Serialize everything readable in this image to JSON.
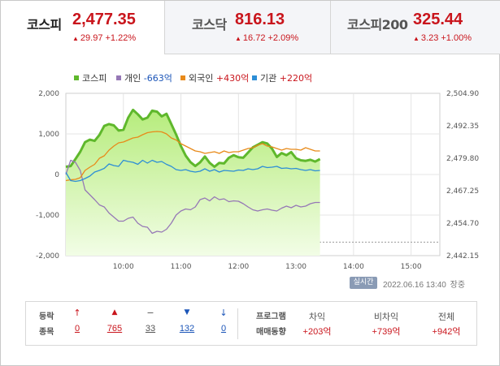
{
  "tabs": [
    {
      "name": "코스피",
      "value": "2,477.35",
      "change_arrow": "▲",
      "change": "29.97 +1.22%",
      "active": true
    },
    {
      "name": "코스닥",
      "value": "816.13",
      "change_arrow": "▲",
      "change": "16.72 +2.09%",
      "active": false
    },
    {
      "name": "코스피200",
      "value": "325.44",
      "change_arrow": "▲",
      "change": "3.23 +1.00%",
      "active": false
    }
  ],
  "colors": {
    "up": "#c9151c",
    "down": "#1b55b8",
    "kospi": "#5fb82c",
    "individual": "#9678b6",
    "foreign": "#e88a1a",
    "institution": "#2d8ed6"
  },
  "legend": [
    {
      "label": "코스피",
      "value": ""
    },
    {
      "label": "개인",
      "value": "-663억"
    },
    {
      "label": "외국인",
      "value": "+430억"
    },
    {
      "label": "기관",
      "value": "+220억"
    }
  ],
  "chart_data": {
    "type": "line",
    "x_ticks": [
      "10:00",
      "11:00",
      "12:00",
      "13:00",
      "14:00",
      "15:00"
    ],
    "y_left_ticks": [
      "2,000",
      "1,000",
      "0",
      "-1,000",
      "-2,000"
    ],
    "y_right_ticks": [
      "2,504.90",
      "2,492.35",
      "2,479.80",
      "2,467.25",
      "2,454.70",
      "2,442.15"
    ],
    "y_left_range": [
      -2000,
      2000
    ],
    "y_right_range": [
      2442.15,
      2504.9
    ],
    "x_range": [
      "09:00",
      "15:30"
    ],
    "reference_level": 2447.38,
    "series": [
      {
        "name": "코스피",
        "axis": "right",
        "style": "area",
        "points": [
          [
            "09:00",
            2476.5
          ],
          [
            "09:05",
            2476.8
          ],
          [
            "09:10",
            2479.5
          ],
          [
            "09:15",
            2482.3
          ],
          [
            "09:20",
            2486.0
          ],
          [
            "09:25",
            2487.0
          ],
          [
            "09:30",
            2486.5
          ],
          [
            "09:35",
            2488.8
          ],
          [
            "09:40",
            2492.3
          ],
          [
            "09:45",
            2493.0
          ],
          [
            "09:50",
            2492.5
          ],
          [
            "09:55",
            2490.5
          ],
          [
            "10:00",
            2490.8
          ],
          [
            "10:05",
            2495.5
          ],
          [
            "10:10",
            2498.5
          ],
          [
            "10:15",
            2496.8
          ],
          [
            "10:20",
            2494.8
          ],
          [
            "10:25",
            2495.5
          ],
          [
            "10:30",
            2498.2
          ],
          [
            "10:35",
            2497.8
          ],
          [
            "10:40",
            2496.0
          ],
          [
            "10:45",
            2497.0
          ],
          [
            "10:50",
            2493.0
          ],
          [
            "10:55",
            2489.0
          ],
          [
            "11:00",
            2484.5
          ],
          [
            "11:05",
            2480.8
          ],
          [
            "11:10",
            2478.3
          ],
          [
            "11:15",
            2476.8
          ],
          [
            "11:20",
            2478.2
          ],
          [
            "11:25",
            2480.5
          ],
          [
            "11:30",
            2478.0
          ],
          [
            "11:35",
            2476.5
          ],
          [
            "11:40",
            2478.0
          ],
          [
            "11:45",
            2477.8
          ],
          [
            "11:50",
            2480.0
          ],
          [
            "11:55",
            2481.0
          ],
          [
            "12:00",
            2480.2
          ],
          [
            "12:05",
            2480.0
          ],
          [
            "12:10",
            2482.0
          ],
          [
            "12:15",
            2484.0
          ],
          [
            "12:20",
            2485.0
          ],
          [
            "12:25",
            2486.0
          ],
          [
            "12:30",
            2485.5
          ],
          [
            "12:35",
            2483.5
          ],
          [
            "12:40",
            2480.3
          ],
          [
            "12:45",
            2481.8
          ],
          [
            "12:50",
            2481.0
          ],
          [
            "12:55",
            2482.2
          ],
          [
            "13:00",
            2479.8
          ],
          [
            "13:05",
            2479.0
          ],
          [
            "13:10",
            2478.8
          ],
          [
            "13:15",
            2479.2
          ],
          [
            "13:20",
            2478.5
          ],
          [
            "13:25",
            2479.5
          ]
        ]
      },
      {
        "name": "개인",
        "axis": "left",
        "style": "line",
        "points": [
          [
            "09:00",
            0
          ],
          [
            "09:05",
            350
          ],
          [
            "09:10",
            300
          ],
          [
            "09:15",
            100
          ],
          [
            "09:20",
            -380
          ],
          [
            "09:25",
            -500
          ],
          [
            "09:30",
            -620
          ],
          [
            "09:35",
            -750
          ],
          [
            "09:40",
            -800
          ],
          [
            "09:45",
            -950
          ],
          [
            "09:50",
            -1050
          ],
          [
            "09:55",
            -1150
          ],
          [
            "10:00",
            -1150
          ],
          [
            "10:05",
            -1080
          ],
          [
            "10:10",
            -1050
          ],
          [
            "10:15",
            -1200
          ],
          [
            "10:20",
            -1280
          ],
          [
            "10:25",
            -1300
          ],
          [
            "10:30",
            -1450
          ],
          [
            "10:35",
            -1400
          ],
          [
            "10:40",
            -1420
          ],
          [
            "10:45",
            -1350
          ],
          [
            "10:50",
            -1200
          ],
          [
            "10:55",
            -1000
          ],
          [
            "11:00",
            -900
          ],
          [
            "11:05",
            -850
          ],
          [
            "11:10",
            -870
          ],
          [
            "11:15",
            -800
          ],
          [
            "11:20",
            -620
          ],
          [
            "11:25",
            -580
          ],
          [
            "11:30",
            -650
          ],
          [
            "11:35",
            -550
          ],
          [
            "11:40",
            -620
          ],
          [
            "11:45",
            -600
          ],
          [
            "11:50",
            -670
          ],
          [
            "11:55",
            -650
          ],
          [
            "12:00",
            -660
          ],
          [
            "12:05",
            -720
          ],
          [
            "12:10",
            -800
          ],
          [
            "12:15",
            -870
          ],
          [
            "12:20",
            -900
          ],
          [
            "12:25",
            -870
          ],
          [
            "12:30",
            -850
          ],
          [
            "12:35",
            -880
          ],
          [
            "12:40",
            -900
          ],
          [
            "12:45",
            -830
          ],
          [
            "12:50",
            -780
          ],
          [
            "12:55",
            -820
          ],
          [
            "13:00",
            -760
          ],
          [
            "13:05",
            -800
          ],
          [
            "13:10",
            -780
          ],
          [
            "13:15",
            -720
          ],
          [
            "13:20",
            -690
          ],
          [
            "13:25",
            -690
          ]
        ]
      },
      {
        "name": "외국인",
        "axis": "left",
        "style": "line",
        "points": [
          [
            "09:00",
            -150
          ],
          [
            "09:05",
            -130
          ],
          [
            "09:10",
            -120
          ],
          [
            "09:15",
            -80
          ],
          [
            "09:20",
            100
          ],
          [
            "09:25",
            180
          ],
          [
            "09:30",
            250
          ],
          [
            "09:35",
            400
          ],
          [
            "09:40",
            460
          ],
          [
            "09:45",
            600
          ],
          [
            "09:50",
            700
          ],
          [
            "09:55",
            780
          ],
          [
            "10:00",
            800
          ],
          [
            "10:05",
            850
          ],
          [
            "10:10",
            900
          ],
          [
            "10:15",
            920
          ],
          [
            "10:20",
            980
          ],
          [
            "10:25",
            1030
          ],
          [
            "10:30",
            1050
          ],
          [
            "10:35",
            1060
          ],
          [
            "10:40",
            1050
          ],
          [
            "10:45",
            1000
          ],
          [
            "10:50",
            900
          ],
          [
            "10:55",
            850
          ],
          [
            "11:00",
            760
          ],
          [
            "11:05",
            700
          ],
          [
            "11:10",
            640
          ],
          [
            "11:15",
            580
          ],
          [
            "11:20",
            560
          ],
          [
            "11:25",
            520
          ],
          [
            "11:30",
            540
          ],
          [
            "11:35",
            560
          ],
          [
            "11:40",
            520
          ],
          [
            "11:45",
            580
          ],
          [
            "11:50",
            540
          ],
          [
            "11:55",
            560
          ],
          [
            "12:00",
            560
          ],
          [
            "12:05",
            600
          ],
          [
            "12:10",
            640
          ],
          [
            "12:15",
            660
          ],
          [
            "12:20",
            720
          ],
          [
            "12:25",
            760
          ],
          [
            "12:30",
            700
          ],
          [
            "12:35",
            680
          ],
          [
            "12:40",
            640
          ],
          [
            "12:45",
            600
          ],
          [
            "12:50",
            640
          ],
          [
            "12:55",
            620
          ],
          [
            "13:00",
            620
          ],
          [
            "13:05",
            600
          ],
          [
            "13:10",
            660
          ],
          [
            "13:15",
            620
          ],
          [
            "13:20",
            580
          ],
          [
            "13:25",
            580
          ]
        ]
      },
      {
        "name": "기관",
        "axis": "left",
        "style": "line",
        "points": [
          [
            "09:00",
            50
          ],
          [
            "09:05",
            -150
          ],
          [
            "09:10",
            -170
          ],
          [
            "09:15",
            -150
          ],
          [
            "09:20",
            -100
          ],
          [
            "09:25",
            -40
          ],
          [
            "09:30",
            60
          ],
          [
            "09:35",
            100
          ],
          [
            "09:40",
            150
          ],
          [
            "09:45",
            260
          ],
          [
            "09:50",
            220
          ],
          [
            "09:55",
            200
          ],
          [
            "10:00",
            350
          ],
          [
            "10:05",
            320
          ],
          [
            "10:10",
            300
          ],
          [
            "10:15",
            250
          ],
          [
            "10:20",
            350
          ],
          [
            "10:25",
            280
          ],
          [
            "10:30",
            350
          ],
          [
            "10:35",
            300
          ],
          [
            "10:40",
            320
          ],
          [
            "10:45",
            250
          ],
          [
            "10:50",
            200
          ],
          [
            "10:55",
            120
          ],
          [
            "11:00",
            100
          ],
          [
            "11:05",
            120
          ],
          [
            "11:10",
            80
          ],
          [
            "11:15",
            60
          ],
          [
            "11:20",
            80
          ],
          [
            "11:25",
            140
          ],
          [
            "11:30",
            80
          ],
          [
            "11:35",
            120
          ],
          [
            "11:40",
            60
          ],
          [
            "11:45",
            100
          ],
          [
            "11:50",
            90
          ],
          [
            "11:55",
            80
          ],
          [
            "12:00",
            110
          ],
          [
            "12:05",
            100
          ],
          [
            "12:10",
            140
          ],
          [
            "12:15",
            120
          ],
          [
            "12:20",
            140
          ],
          [
            "12:25",
            200
          ],
          [
            "12:30",
            170
          ],
          [
            "12:35",
            180
          ],
          [
            "12:40",
            200
          ],
          [
            "12:45",
            150
          ],
          [
            "12:50",
            160
          ],
          [
            "12:55",
            140
          ],
          [
            "13:00",
            150
          ],
          [
            "13:05",
            120
          ],
          [
            "13:10",
            100
          ],
          [
            "13:15",
            120
          ],
          [
            "13:20",
            90
          ],
          [
            "13:25",
            100
          ]
        ]
      }
    ]
  },
  "status": {
    "realtime_label": "실시간",
    "timestamp": "2022.06.16 13:40",
    "market_state": "장중"
  },
  "breadth": {
    "labels": [
      "등락",
      "종목"
    ],
    "items": [
      {
        "symbol": "↑",
        "count": "0",
        "color": "red"
      },
      {
        "symbol": "▲",
        "count": "765",
        "color": "red"
      },
      {
        "symbol": "−",
        "count": "33",
        "color": "gray"
      },
      {
        "symbol": "▼",
        "count": "132",
        "color": "blue"
      },
      {
        "symbol": "↓",
        "count": "0",
        "color": "blue"
      }
    ]
  },
  "program": {
    "labels": [
      "프로그램",
      "매매동향"
    ],
    "columns": [
      {
        "head": "차익",
        "value": "+203억"
      },
      {
        "head": "비차익",
        "value": "+739억"
      },
      {
        "head": "전체",
        "value": "+942억"
      }
    ]
  }
}
